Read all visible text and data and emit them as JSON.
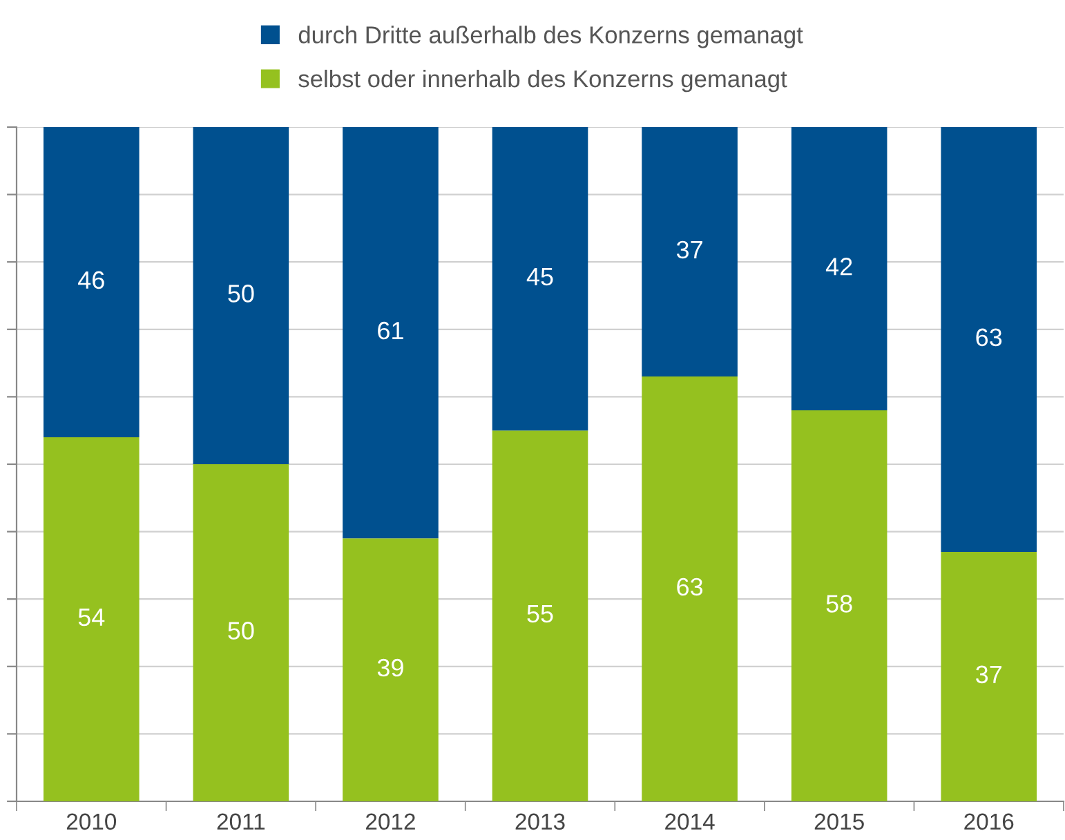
{
  "chart_data": {
    "type": "bar",
    "stacked": true,
    "categories": [
      "2010",
      "2011",
      "2012",
      "2013",
      "2014",
      "2015",
      "2016"
    ],
    "series": [
      {
        "name": "selbst oder innerhalb des Konzerns gemanagt",
        "color": "#95c11f",
        "values": [
          54,
          50,
          39,
          55,
          63,
          58,
          37
        ]
      },
      {
        "name": "durch Dritte außerhalb des Konzerns gemanagt",
        "color": "#00508f",
        "values": [
          46,
          50,
          61,
          45,
          37,
          42,
          63
        ]
      }
    ],
    "ylim": [
      0,
      100
    ],
    "yticks": [
      {
        "value": 0,
        "label": null
      },
      {
        "value": 10,
        "label": null
      },
      {
        "value": 20,
        "label": null
      },
      {
        "value": 30,
        "label": null
      },
      {
        "value": 40,
        "label": null
      },
      {
        "value": 50,
        "label": null
      },
      {
        "value": 60,
        "label": null
      },
      {
        "value": 70,
        "label": null
      },
      {
        "value": 80,
        "label": null
      },
      {
        "value": 90,
        "label": null
      },
      {
        "value": 100,
        "label": null
      }
    ],
    "tick_labels": "x",
    "grid": "y",
    "legend": "top",
    "data_labels": true
  }
}
